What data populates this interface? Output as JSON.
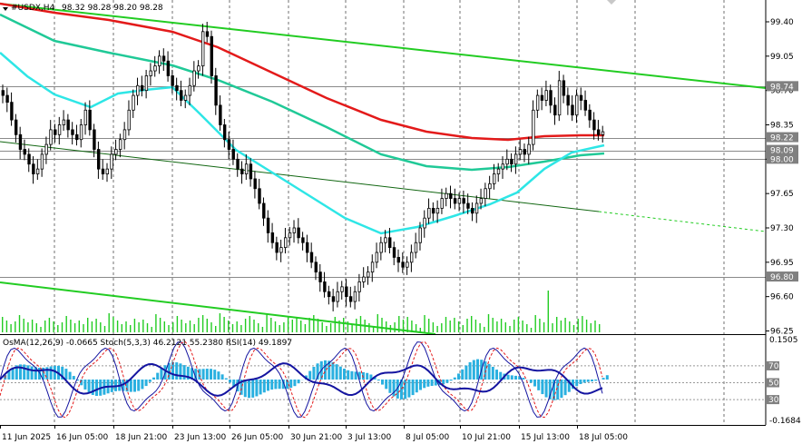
{
  "header": {
    "symbol": "#USDX,H4",
    "ohlc": "98.32 98.28 98.20 98.28"
  },
  "indicator_header": "OsMA(12,26,9) -0.0665  Stoch(5,3,3) 46.2121 55.2380  RSI(14) 49.1897",
  "price_axis": [
    "99.40",
    "99.05",
    "98.70",
    "98.35",
    "98.00",
    "97.65",
    "97.30",
    "96.95",
    "96.60",
    "96.25"
  ],
  "price_tags": [
    {
      "label": "98.74",
      "value": 98.74
    },
    {
      "label": "98.22",
      "value": 98.22
    },
    {
      "label": "98.09",
      "value": 98.09
    },
    {
      "label": "98.00",
      "value": 98.0
    },
    {
      "label": "96.80",
      "value": 96.8
    }
  ],
  "indicator_axis": {
    "top": "0.1505",
    "lines": [
      {
        "label": "70",
        "value": 70
      },
      {
        "label": "50",
        "value": 50
      },
      {
        "label": "30",
        "value": 30
      }
    ],
    "bottom": "-0.1684"
  },
  "time_axis": [
    "11 Jun 2025",
    "16 Jun 05:00",
    "18 Jun 21:00",
    "23 Jun 13:00",
    "26 Jun 05:00",
    "30 Jun 21:00",
    "3 Jul 13:00",
    "8 Jul 05:00",
    "10 Jul 21:00",
    "15 Jul 13:00",
    "18 Jul 05:00"
  ],
  "colors": {
    "ema200": "#e31a1a",
    "ema144": "#20c997",
    "ema50": "#2ee6e6",
    "channel": "#22cc22",
    "candle": "#000000",
    "volume": "#22cc22",
    "osma": "#2ab0e0",
    "stoch_main": "#1414a0",
    "stoch_signal": "#e31a1a",
    "rsi": "#1414a0",
    "grid": "#000000"
  },
  "chart_data": {
    "type": "candlestick",
    "symbol": "#USDX",
    "timeframe": "H4",
    "ylim": [
      96.15,
      99.6
    ],
    "close_series": [
      98.65,
      98.58,
      98.4,
      98.25,
      98.1,
      98.05,
      97.95,
      97.85,
      97.9,
      98.05,
      98.15,
      98.3,
      98.25,
      98.35,
      98.4,
      98.3,
      98.25,
      98.2,
      98.35,
      98.5,
      98.3,
      98.1,
      97.9,
      97.85,
      97.9,
      98.05,
      98.1,
      98.2,
      98.3,
      98.5,
      98.65,
      98.75,
      98.7,
      98.85,
      98.9,
      98.95,
      99.05,
      99.0,
      98.85,
      98.75,
      98.7,
      98.6,
      98.65,
      98.75,
      98.9,
      98.95,
      99.3,
      99.25,
      98.85,
      98.55,
      98.35,
      98.2,
      98.1,
      98.0,
      97.9,
      97.85,
      97.95,
      97.8,
      97.7,
      97.55,
      97.4,
      97.25,
      97.15,
      97.05,
      97.1,
      97.2,
      97.25,
      97.3,
      97.2,
      97.15,
      97.05,
      96.95,
      96.85,
      96.75,
      96.65,
      96.6,
      96.55,
      96.65,
      96.7,
      96.6,
      96.55,
      96.65,
      96.75,
      96.8,
      96.85,
      96.95,
      97.05,
      97.15,
      97.2,
      97.1,
      97.0,
      96.95,
      96.9,
      96.95,
      97.05,
      97.15,
      97.3,
      97.4,
      97.5,
      97.45,
      97.5,
      97.6,
      97.65,
      97.6,
      97.55,
      97.6,
      97.55,
      97.5,
      97.45,
      97.55,
      97.6,
      97.7,
      97.75,
      97.85,
      97.9,
      97.95,
      98.0,
      97.95,
      98.05,
      98.1,
      98.05,
      98.15,
      98.5,
      98.65,
      98.6,
      98.7,
      98.55,
      98.45,
      98.8,
      98.65,
      98.55,
      98.45,
      98.65,
      98.6,
      98.5,
      98.4,
      98.3,
      98.25,
      98.28
    ]
  }
}
